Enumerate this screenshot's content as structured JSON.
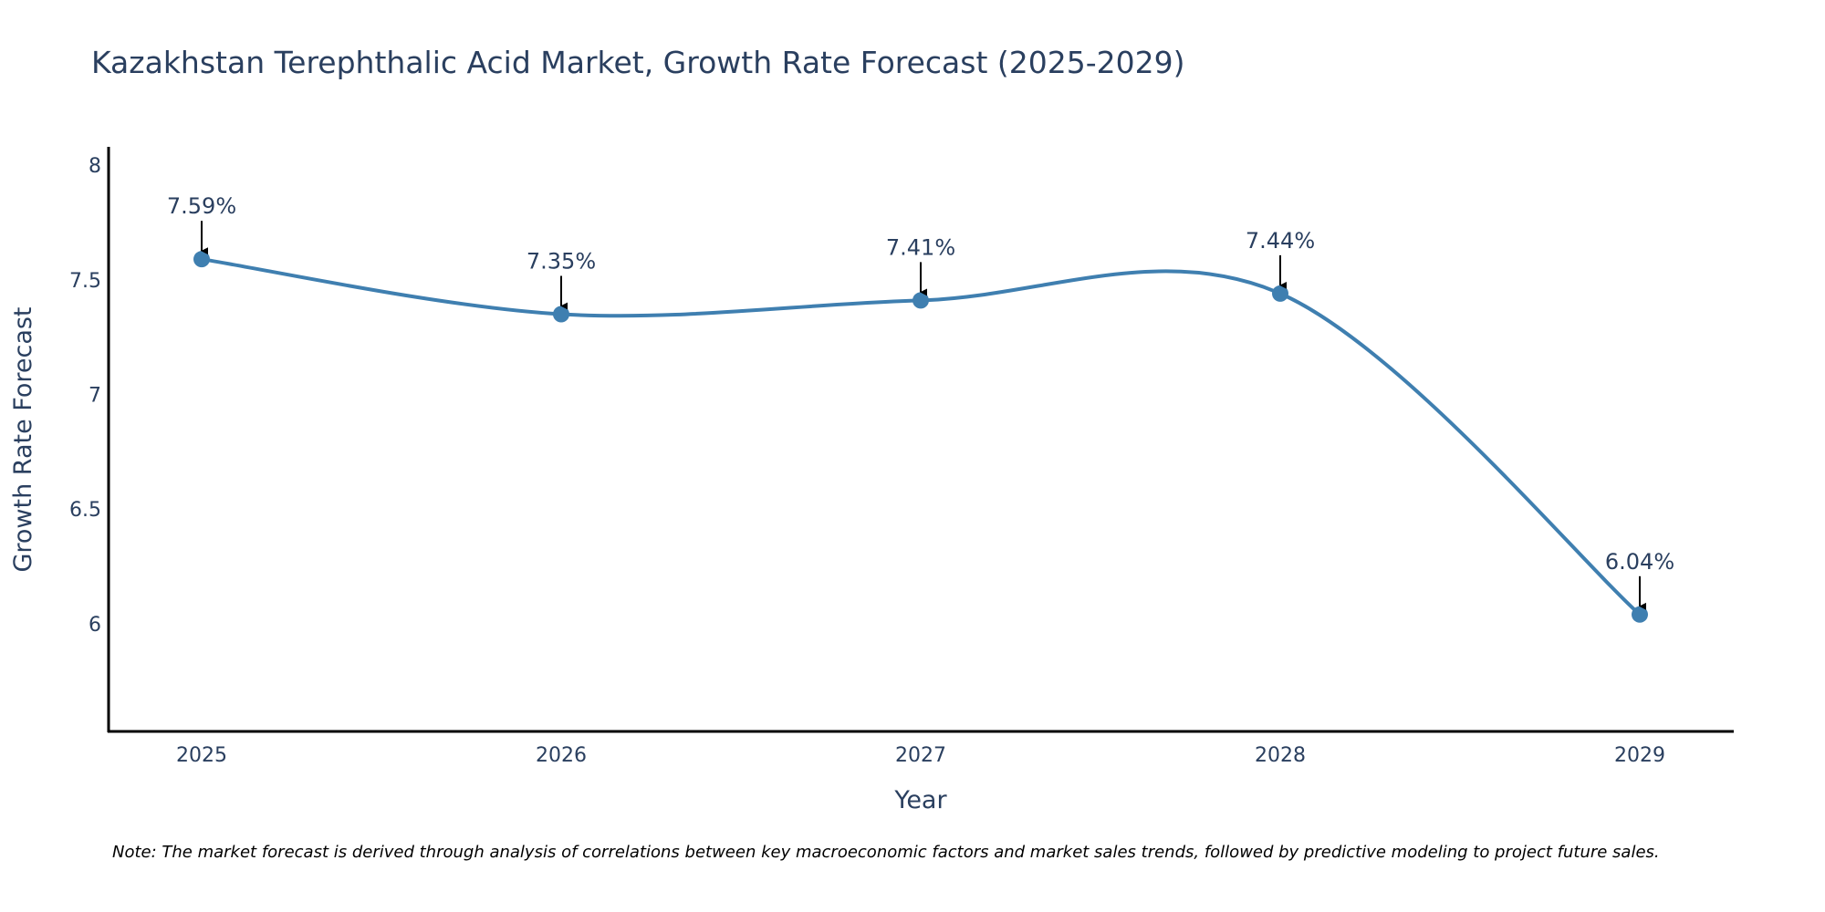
{
  "chart_data": {
    "type": "line",
    "title": "Kazakhstan Terephthalic Acid Market, Growth Rate Forecast (2025-2029)",
    "xlabel": "Year",
    "ylabel": "Growth Rate Forecast",
    "categories": [
      "2025",
      "2026",
      "2027",
      "2028",
      "2029"
    ],
    "series": [
      {
        "name": "Growth Rate Forecast",
        "values": [
          7.59,
          7.35,
          7.41,
          7.44,
          6.04
        ]
      }
    ],
    "data_labels": [
      "7.59%",
      "7.35%",
      "7.41%",
      "7.44%",
      "6.04%"
    ],
    "y_ticks": [
      6,
      6.5,
      7,
      7.5,
      8
    ],
    "y_tick_labels": [
      "6",
      "6.5",
      "7",
      "7.5",
      "8"
    ],
    "ylim": [
      5.53,
      8.08
    ],
    "grid": false,
    "line_shape": "spline",
    "line_color": "#3f7fb0",
    "marker_color": "#3f7fb0",
    "annotation_arrow_color": "#000000",
    "note": "Note: The market forecast is derived through analysis of correlations between key macroeconomic factors and market sales trends, followed by predictive modeling to project future sales."
  }
}
